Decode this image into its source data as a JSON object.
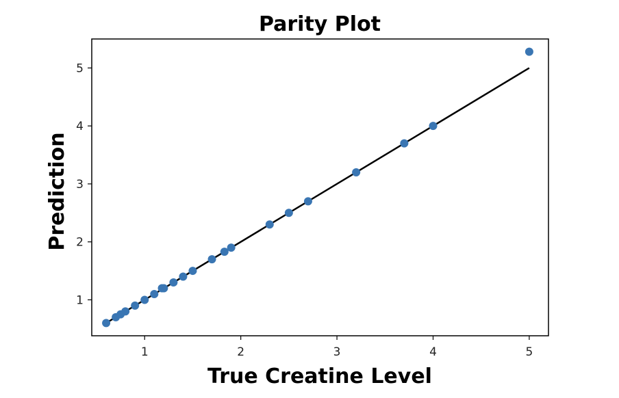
{
  "chart_data": {
    "type": "scatter",
    "title": "Parity Plot",
    "xlabel": "True Creatine Level",
    "ylabel": "Prediction",
    "xlim": [
      0.45,
      5.2
    ],
    "ylim": [
      0.38,
      5.5
    ],
    "xticks": [
      1,
      2,
      3,
      4,
      5
    ],
    "yticks": [
      1,
      2,
      3,
      4,
      5
    ],
    "grid": false,
    "series": [
      {
        "color": "#3a76b3",
        "points": [
          [
            0.6,
            0.6
          ],
          [
            0.7,
            0.7
          ],
          [
            0.75,
            0.75
          ],
          [
            0.8,
            0.8
          ],
          [
            0.9,
            0.9
          ],
          [
            1.0,
            1.0
          ],
          [
            1.1,
            1.1
          ],
          [
            1.18,
            1.2
          ],
          [
            1.2,
            1.2
          ],
          [
            1.3,
            1.3
          ],
          [
            1.4,
            1.4
          ],
          [
            1.5,
            1.5
          ],
          [
            1.7,
            1.7
          ],
          [
            1.83,
            1.83
          ],
          [
            1.9,
            1.9
          ],
          [
            2.3,
            2.3
          ],
          [
            2.5,
            2.5
          ],
          [
            2.7,
            2.7
          ],
          [
            3.2,
            3.2
          ],
          [
            3.7,
            3.7
          ],
          [
            4.0,
            4.0
          ],
          [
            5.0,
            5.28
          ]
        ]
      }
    ],
    "reference_line": {
      "color": "#000000",
      "from": [
        0.6,
        0.6
      ],
      "to": [
        5.0,
        5.0
      ]
    }
  }
}
